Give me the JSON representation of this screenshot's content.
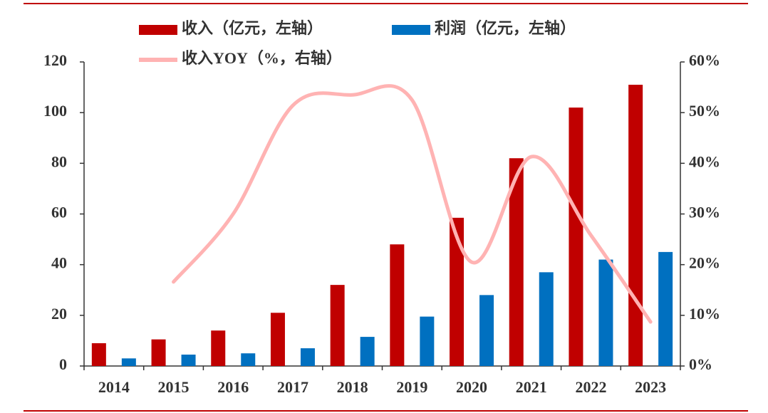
{
  "chart_data": {
    "type": "bar-line",
    "categories": [
      "2014",
      "2015",
      "2016",
      "2017",
      "2018",
      "2019",
      "2020",
      "2021",
      "2022",
      "2023"
    ],
    "series": [
      {
        "name": "收入（亿元，左轴）",
        "color": "#c00000",
        "type": "bar",
        "values": [
          9,
          10.5,
          14,
          21,
          32,
          48,
          58.5,
          82,
          102,
          111
        ]
      },
      {
        "name": "利润（亿元，左轴）",
        "color": "#0070c0",
        "type": "bar",
        "values": [
          3,
          4.5,
          5,
          7,
          11.5,
          19.5,
          28,
          37,
          42,
          45
        ]
      },
      {
        "name": "收入YOY（%，右轴）",
        "color": "#ffb3b3",
        "type": "line",
        "axis": "y2",
        "values": [
          null,
          16.6,
          30,
          51.4,
          53.5,
          52.5,
          20.5,
          41.3,
          25.8,
          8.7
        ]
      }
    ],
    "ylim": [
      0,
      120
    ],
    "yticks": [
      0,
      20,
      40,
      60,
      80,
      100,
      120
    ],
    "y2lim": [
      0,
      60
    ],
    "y2ticks": [
      {
        "value": 0,
        "label": "0%"
      },
      {
        "value": 10,
        "label": "10%"
      },
      {
        "value": 20,
        "label": "20%"
      },
      {
        "value": 30,
        "label": "30%"
      },
      {
        "value": 40,
        "label": "40%"
      },
      {
        "value": 50,
        "label": "50%"
      },
      {
        "value": 60,
        "label": "60%"
      }
    ],
    "grid": false
  }
}
